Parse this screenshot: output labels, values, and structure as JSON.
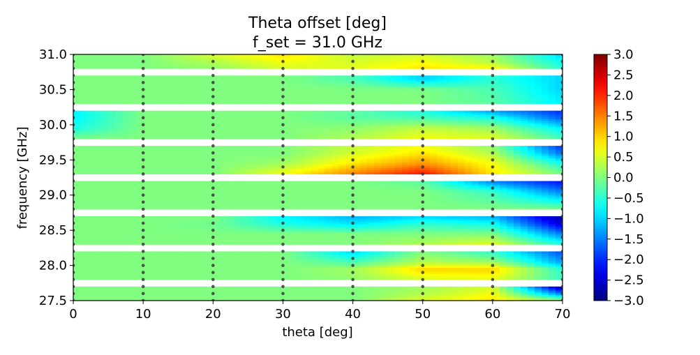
{
  "chart_data": {
    "type": "heatmap",
    "title_lines": [
      "Theta offset [deg]",
      "f_set = 31.0 GHz"
    ],
    "xlabel": "theta [deg]",
    "ylabel": "frequency [GHz]",
    "xlim": [
      0,
      70
    ],
    "ylim": [
      27.5,
      31.0
    ],
    "x_ticks": [
      0,
      10,
      20,
      30,
      40,
      50,
      60,
      70
    ],
    "x_tick_labels": [
      "0",
      "10",
      "20",
      "30",
      "40",
      "50",
      "60",
      "70"
    ],
    "y_ticks": [
      27.5,
      28.0,
      28.5,
      29.0,
      29.5,
      30.0,
      30.5,
      31.0
    ],
    "y_tick_labels": [
      "27.5",
      "28.0",
      "28.5",
      "29.0",
      "29.5",
      "30.0",
      "30.5",
      "31.0"
    ],
    "colormap": "jet",
    "clim": [
      -3.0,
      3.0
    ],
    "colorbar_ticks": [
      -3.0,
      -2.5,
      -2.0,
      -1.5,
      -1.0,
      -0.5,
      0.0,
      0.5,
      1.0,
      1.5,
      2.0,
      2.5,
      3.0
    ],
    "colorbar_tick_labels": [
      "−3.0",
      "−2.5",
      "−2.0",
      "−1.5",
      "−1.0",
      "−0.5",
      "0.0",
      "0.5",
      "1.0",
      "1.5",
      "2.0",
      "2.5",
      "3.0"
    ],
    "x_theta": [
      0,
      10,
      20,
      30,
      40,
      50,
      60,
      70
    ],
    "measurement_frequencies": [
      27.5,
      28.0,
      28.5,
      29.0,
      29.5,
      30.0,
      30.5,
      31.0
    ],
    "bands": [
      {
        "f_low": 27.5,
        "f_high": 27.7,
        "profiles": [
          {
            "f": 27.5,
            "values": [
              0,
              0,
              0,
              0,
              0,
              0.6,
              0.9,
              0.3
            ]
          },
          {
            "f": 27.6,
            "values": [
              0,
              0,
              0,
              0,
              0,
              0.3,
              0.7,
              -1.5
            ]
          },
          {
            "f": 27.7,
            "values": [
              0,
              0,
              0,
              0,
              0,
              0.2,
              0.5,
              -2.8
            ]
          }
        ]
      },
      {
        "f_low": 27.8,
        "f_high": 28.2,
        "profiles": [
          {
            "f": 27.8,
            "values": [
              0,
              0,
              0,
              0,
              0.1,
              0.5,
              0.6,
              -0.4
            ]
          },
          {
            "f": 27.95,
            "values": [
              0,
              0,
              0,
              0,
              0.2,
              1.0,
              1.0,
              -0.5
            ]
          },
          {
            "f": 28.05,
            "values": [
              0,
              0,
              0,
              0,
              -0.3,
              0.3,
              0.2,
              -1.3
            ]
          },
          {
            "f": 28.2,
            "values": [
              0,
              0,
              0,
              0,
              -1.0,
              0.0,
              -0.5,
              -1.8
            ]
          }
        ]
      },
      {
        "f_low": 28.3,
        "f_high": 28.7,
        "profiles": [
          {
            "f": 28.3,
            "values": [
              0,
              0,
              0,
              0,
              0,
              0.3,
              0.6,
              -0.5
            ]
          },
          {
            "f": 28.45,
            "values": [
              0,
              0,
              0,
              0,
              0,
              0,
              0,
              -1.5
            ]
          },
          {
            "f": 28.6,
            "values": [
              0,
              0,
              -0.1,
              -0.6,
              -0.9,
              -0.5,
              -0.7,
              -2.5
            ]
          },
          {
            "f": 28.7,
            "values": [
              0,
              0,
              0,
              -0.8,
              -1.2,
              -1.0,
              -1.2,
              -2.8
            ]
          }
        ]
      },
      {
        "f_low": 28.8,
        "f_high": 29.2,
        "profiles": [
          {
            "f": 28.8,
            "values": [
              0,
              0,
              0,
              0,
              0,
              0,
              0,
              0
            ]
          },
          {
            "f": 29.05,
            "values": [
              0,
              0,
              0,
              0,
              0,
              0,
              -0.4,
              -1.5
            ]
          },
          {
            "f": 29.2,
            "values": [
              0,
              0,
              0,
              0,
              0,
              -0.2,
              -1.5,
              -2.2
            ]
          }
        ]
      },
      {
        "f_low": 29.3,
        "f_high": 29.7,
        "profiles": [
          {
            "f": 29.3,
            "values": [
              0,
              0,
              0,
              0.7,
              1.5,
              2.2,
              0.9,
              0
            ]
          },
          {
            "f": 29.45,
            "values": [
              0,
              0,
              0,
              0.2,
              0.9,
              1.4,
              0.7,
              -0.6
            ]
          },
          {
            "f": 29.6,
            "values": [
              0,
              0,
              0,
              0,
              0.5,
              0.9,
              0.3,
              -1.6
            ]
          },
          {
            "f": 29.7,
            "values": [
              0,
              0,
              0,
              0,
              0.4,
              0.7,
              0.1,
              -2.0
            ]
          }
        ]
      },
      {
        "f_low": 29.8,
        "f_high": 30.2,
        "profiles": [
          {
            "f": 29.8,
            "values": [
              0,
              0,
              0,
              0,
              0.3,
              0.7,
              0.6,
              -0.3
            ]
          },
          {
            "f": 29.95,
            "values": [
              -0.6,
              0,
              0,
              0,
              0.1,
              0.4,
              0.2,
              -0.8
            ]
          },
          {
            "f": 30.1,
            "values": [
              -0.8,
              0,
              0,
              0,
              -0.2,
              -0.3,
              -0.6,
              -1.7
            ]
          },
          {
            "f": 30.2,
            "values": [
              -0.8,
              0,
              0,
              0,
              -0.2,
              -0.6,
              -1.3,
              -2.0
            ]
          }
        ]
      },
      {
        "f_low": 30.3,
        "f_high": 30.7,
        "profiles": [
          {
            "f": 30.3,
            "values": [
              0,
              0,
              0,
              0,
              0,
              0,
              -0.2,
              -0.8
            ]
          },
          {
            "f": 30.5,
            "values": [
              0,
              0,
              0,
              0,
              0,
              0,
              -0.3,
              -1.0
            ]
          },
          {
            "f": 30.65,
            "values": [
              0,
              0,
              0,
              0,
              -0.3,
              -1.0,
              -0.5,
              -1.0
            ]
          }
        ]
      },
      {
        "f_low": 30.8,
        "f_high": 31.0,
        "profiles": [
          {
            "f": 30.8,
            "values": [
              0,
              0,
              0.1,
              0.5,
              0.6,
              0.9,
              0.8,
              -0.5
            ]
          },
          {
            "f": 30.9,
            "values": [
              0,
              0,
              0.3,
              0.7,
              0.5,
              0.7,
              0.3,
              -0.7
            ]
          },
          {
            "f": 31.0,
            "values": [
              0,
              0,
              0.5,
              0.9,
              0.4,
              0.5,
              0.2,
              -1.0
            ]
          }
        ]
      }
    ]
  }
}
